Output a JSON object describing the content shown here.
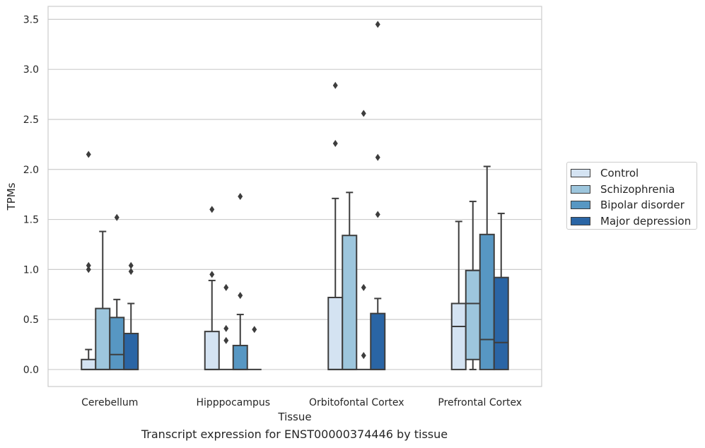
{
  "chart_data": {
    "type": "box",
    "title": "Transcript expression for ENST00000374446 by tissue",
    "xlabel": "Tissue",
    "ylabel": "TPMs",
    "ylim": [
      -0.17,
      3.63
    ],
    "yticks": [
      "0.0",
      "0.5",
      "1.0",
      "1.5",
      "2.0",
      "2.5",
      "3.0",
      "3.5"
    ],
    "categories": [
      "Cerebellum",
      "Hipppocampus",
      "Orbitofontal Cortex",
      "Prefrontal Cortex"
    ],
    "grid": "horizontal",
    "legend_position": "right",
    "series": [
      {
        "name": "Control",
        "color": "#d4e3f2",
        "boxes": [
          {
            "q1": 0,
            "median": 0,
            "q3": 0.1,
            "whisker_low": 0,
            "whisker_high": 0.2,
            "outliers": [
              1.0,
              1.04,
              2.15
            ]
          },
          {
            "q1": 0,
            "median": 0,
            "q3": 0.38,
            "whisker_low": 0,
            "whisker_high": 0.89,
            "outliers": [
              0.95,
              1.6
            ]
          },
          {
            "q1": 0,
            "median": 0,
            "q3": 0.72,
            "whisker_low": 0,
            "whisker_high": 1.71,
            "outliers": [
              2.26,
              2.84
            ]
          },
          {
            "q1": 0,
            "median": 0.43,
            "q3": 0.66,
            "whisker_low": 0,
            "whisker_high": 1.48,
            "outliers": []
          }
        ]
      },
      {
        "name": "Schizophrenia",
        "color": "#9dc6dd",
        "boxes": [
          {
            "q1": 0,
            "median": 0,
            "q3": 0.61,
            "whisker_low": 0,
            "whisker_high": 1.38,
            "outliers": []
          },
          {
            "q1": 0,
            "median": 0,
            "q3": 0,
            "whisker_low": 0,
            "whisker_high": 0,
            "outliers": [
              0.29,
              0.41,
              0.82
            ]
          },
          {
            "q1": 0,
            "median": 0,
            "q3": 1.34,
            "whisker_low": 0,
            "whisker_high": 1.77,
            "outliers": []
          },
          {
            "q1": 0.1,
            "median": 0.66,
            "q3": 0.99,
            "whisker_low": 0,
            "whisker_high": 1.68,
            "outliers": []
          }
        ]
      },
      {
        "name": "Bipolar disorder",
        "color": "#5797c3",
        "boxes": [
          {
            "q1": 0,
            "median": 0.15,
            "q3": 0.52,
            "whisker_low": 0,
            "whisker_high": 0.7,
            "outliers": [
              1.52
            ]
          },
          {
            "q1": 0,
            "median": 0,
            "q3": 0.24,
            "whisker_low": 0,
            "whisker_high": 0.55,
            "outliers": [
              0.74,
              1.73
            ]
          },
          {
            "q1": 0,
            "median": 0,
            "q3": 0,
            "whisker_low": 0,
            "whisker_high": 0,
            "outliers": [
              0.14,
              0.82,
              2.56
            ]
          },
          {
            "q1": 0,
            "median": 0.3,
            "q3": 1.35,
            "whisker_low": 0,
            "whisker_high": 2.03,
            "outliers": []
          }
        ]
      },
      {
        "name": "Major depression",
        "color": "#2a65a5",
        "boxes": [
          {
            "q1": 0,
            "median": 0,
            "q3": 0.36,
            "whisker_low": 0,
            "whisker_high": 0.66,
            "outliers": [
              0.98,
              1.04
            ]
          },
          {
            "q1": 0,
            "median": 0,
            "q3": 0,
            "whisker_low": 0,
            "whisker_high": 0,
            "outliers": [
              0.4
            ]
          },
          {
            "q1": 0,
            "median": 0,
            "q3": 0.56,
            "whisker_low": 0,
            "whisker_high": 0.71,
            "outliers": [
              1.55,
              2.12,
              3.45
            ]
          },
          {
            "q1": 0,
            "median": 0.27,
            "q3": 0.92,
            "whisker_low": 0,
            "whisker_high": 1.56,
            "outliers": []
          }
        ]
      }
    ]
  }
}
